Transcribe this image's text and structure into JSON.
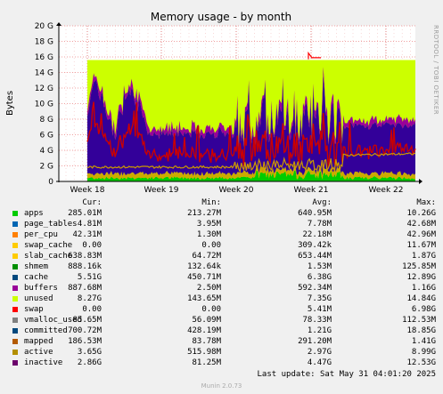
{
  "chart_data": {
    "type": "area",
    "title": "Memory usage - by month",
    "ylabel": "Bytes",
    "side_label": "RRDTOOL / TOBI OETIKER",
    "ylim": [
      0,
      20
    ],
    "y_unit": "G",
    "y_ticks": [
      "0",
      "2 G",
      "4 G",
      "6 G",
      "8 G",
      "10 G",
      "12 G",
      "14 G",
      "16 G",
      "18 G",
      "20 G"
    ],
    "x_ticks": [
      "Week 18",
      "Week 19",
      "Week 20",
      "Week 21",
      "Week 22"
    ],
    "grid": true,
    "stacked": true,
    "series": [
      {
        "name": "apps",
        "color": "#00cc00",
        "approx_value": 0.3
      },
      {
        "name": "page_tables",
        "color": "#0066b3",
        "approx_value": 0.01
      },
      {
        "name": "per_cpu",
        "color": "#ff8000",
        "approx_value": 0.04
      },
      {
        "name": "swap_cache",
        "color": "#ffcc00",
        "approx_value": 0.0
      },
      {
        "name": "slab_cache",
        "color": "#ffcc00",
        "approx_value": 0.6
      },
      {
        "name": "shmem",
        "color": "#008f00",
        "approx_value": 0.0
      },
      {
        "name": "cache",
        "color": "#330099",
        "approx_value": 5.5
      },
      {
        "name": "buffers",
        "color": "#990099",
        "approx_value": 0.9
      },
      {
        "name": "unused",
        "color": "#ccff00",
        "approx_value": 8.27
      },
      {
        "name": "swap",
        "color": "#ff0000",
        "approx_value": 0.0
      }
    ],
    "lines": [
      {
        "name": "inactive",
        "color": "#cc0000",
        "approx_value": 2.86
      },
      {
        "name": "active",
        "color": "#cc9900",
        "approx_value": 3.65
      }
    ]
  },
  "legend": {
    "headers": {
      "cur": "Cur:",
      "min": "Min:",
      "avg": "Avg:",
      "max": "Max:"
    },
    "rows": [
      {
        "name": "apps",
        "color": "#00cc00",
        "cur": "285.01M",
        "min": "213.27M",
        "avg": "640.95M",
        "max": "10.26G"
      },
      {
        "name": "page_tables",
        "color": "#0066b3",
        "cur": "4.81M",
        "min": "3.95M",
        "avg": "7.78M",
        "max": "42.68M"
      },
      {
        "name": "per_cpu",
        "color": "#ff8000",
        "cur": "42.31M",
        "min": "1.30M",
        "avg": "22.18M",
        "max": "42.96M"
      },
      {
        "name": "swap_cache",
        "color": "#ffcc00",
        "cur": "0.00",
        "min": "0.00",
        "avg": "309.42k",
        "max": "11.67M"
      },
      {
        "name": "slab_cache",
        "color": "#ffcc00",
        "cur": "638.83M",
        "min": "64.72M",
        "avg": "653.44M",
        "max": "1.87G"
      },
      {
        "name": "shmem",
        "color": "#008f00",
        "cur": "888.16k",
        "min": "132.64k",
        "avg": "1.53M",
        "max": "125.85M"
      },
      {
        "name": "cache",
        "color": "#00487d",
        "cur": "5.51G",
        "min": "450.71M",
        "avg": "6.38G",
        "max": "12.89G"
      },
      {
        "name": "buffers",
        "color": "#990099",
        "cur": "887.68M",
        "min": "2.50M",
        "avg": "592.34M",
        "max": "1.16G"
      },
      {
        "name": "unused",
        "color": "#ccff00",
        "cur": "8.27G",
        "min": "143.65M",
        "avg": "7.35G",
        "max": "14.84G"
      },
      {
        "name": "swap",
        "color": "#ff0000",
        "cur": "0.00",
        "min": "0.00",
        "avg": "5.41M",
        "max": "6.98G"
      },
      {
        "name": "vmalloc_used",
        "color": "#808080",
        "cur": "85.65M",
        "min": "56.09M",
        "avg": "78.33M",
        "max": "112.53M"
      },
      {
        "name": "committed",
        "color": "#00487d",
        "cur": "700.72M",
        "min": "428.19M",
        "avg": "1.21G",
        "max": "18.85G"
      },
      {
        "name": "mapped",
        "color": "#b35a00",
        "cur": "186.53M",
        "min": "83.78M",
        "avg": "291.20M",
        "max": "1.41G"
      },
      {
        "name": "active",
        "color": "#b38f00",
        "cur": "3.65G",
        "min": "515.98M",
        "avg": "2.97G",
        "max": "8.99G"
      },
      {
        "name": "inactive",
        "color": "#6b006b",
        "cur": "2.86G",
        "min": "81.25M",
        "avg": "4.47G",
        "max": "12.53G"
      }
    ]
  },
  "footer": {
    "last_update": "Last update: Sat May 31 04:01:20 2025",
    "version": "Munin 2.0.73"
  }
}
